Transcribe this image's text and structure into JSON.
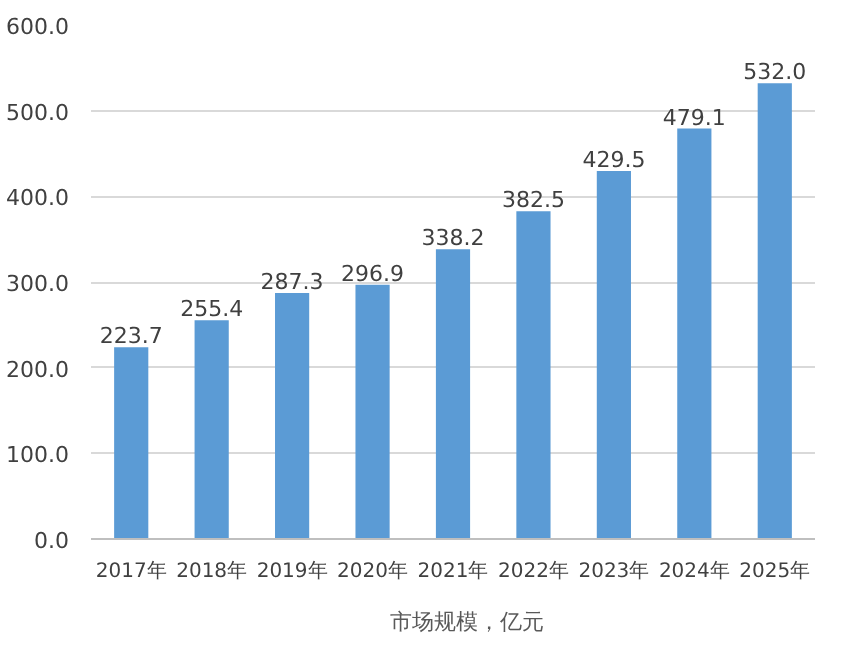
{
  "chart_data": {
    "type": "bar",
    "categories": [
      "2017年",
      "2018年",
      "2019年",
      "2020年",
      "2021年",
      "2022年",
      "2023年",
      "2024年",
      "2025年"
    ],
    "series": [
      {
        "name": "市场规模，亿元",
        "color": "#5b9bd5",
        "values": [
          223.7,
          255.4,
          287.3,
          296.9,
          338.2,
          382.5,
          429.5,
          479.1,
          532.0
        ],
        "value_labels": [
          "223.7",
          "255.4",
          "287.3",
          "296.9",
          "338.2",
          "382.5",
          "429.5",
          "479.1",
          "532.0"
        ]
      }
    ],
    "ylim": [
      0,
      600
    ],
    "yticks": [
      {
        "value": 0,
        "label": "0.0"
      },
      {
        "value": 100,
        "label": "100.0"
      },
      {
        "value": 200,
        "label": "200.0"
      },
      {
        "value": 300,
        "label": "300.0"
      },
      {
        "value": 400,
        "label": "400.0"
      },
      {
        "value": 500,
        "label": "500.0"
      },
      {
        "value": 600,
        "label": "600.0"
      }
    ],
    "grid": "y",
    "legend": "bottom"
  }
}
